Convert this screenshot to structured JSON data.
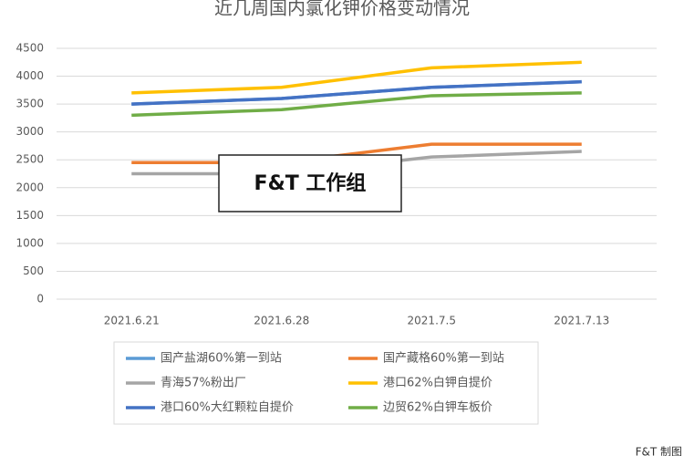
{
  "chart_data": {
    "type": "line",
    "title": "近几周国内氯化钾价格变动情况",
    "categories": [
      "2021.6.21",
      "2021.6.28",
      "2021.7.5",
      "2021.7.13"
    ],
    "series": [
      {
        "name": "国产盐湖60%第一到站",
        "color": "#5b9bd5",
        "values": [
          3500,
          3600,
          3800,
          3900
        ]
      },
      {
        "name": "国产藏格60%第一到站",
        "color": "#ed7d31",
        "values": [
          2450,
          2450,
          2780,
          2780
        ]
      },
      {
        "name": "青海57%粉出厂",
        "color": "#a5a5a5",
        "values": [
          2250,
          2250,
          2550,
          2650
        ]
      },
      {
        "name": "港口62%白钾自提价",
        "color": "#ffc000",
        "values": [
          3700,
          3800,
          4150,
          4250
        ]
      },
      {
        "name": "港口60%大红颗粒自提价",
        "color": "#4472c4",
        "values": [
          3500,
          3600,
          3800,
          3900
        ]
      },
      {
        "name": "边贸62%白钾车板价",
        "color": "#70ad47",
        "values": [
          3300,
          3400,
          3650,
          3700
        ]
      }
    ],
    "ylim": [
      0,
      4500
    ],
    "yticks": [
      0,
      500,
      1000,
      1500,
      2000,
      2500,
      3000,
      3500,
      4000,
      4500
    ],
    "grid": true,
    "annotations": [
      "F&T 工作组",
      "F&T 制图"
    ]
  }
}
